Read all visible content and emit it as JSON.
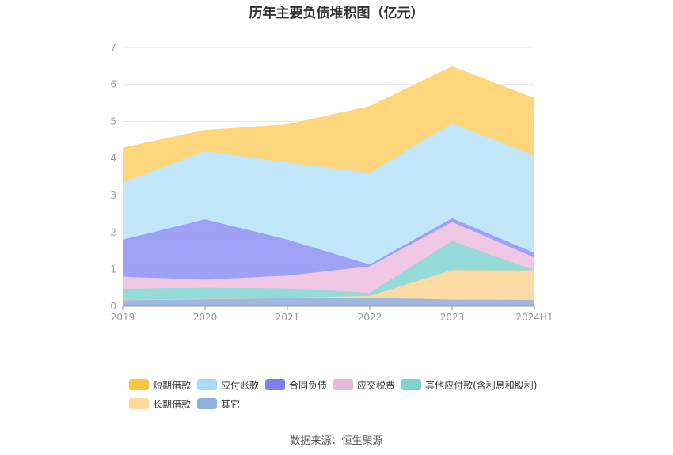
{
  "title": "历年主要负债堆积图（亿元）",
  "source": "数据来源：恒生聚源",
  "chart_data": {
    "type": "area",
    "stacked": true,
    "categories": [
      "2019",
      "2020",
      "2021",
      "2022",
      "2023",
      "2024H1"
    ],
    "ylim": [
      0,
      7
    ],
    "yticks": [
      0,
      1,
      2,
      3,
      4,
      5,
      6,
      7
    ],
    "grid": true,
    "legend_position": "bottom",
    "series": [
      {
        "name": "其它",
        "color": "#9ab4e0",
        "values": [
          0.17,
          0.2,
          0.23,
          0.23,
          0.18,
          0.17
        ]
      },
      {
        "name": "长期借款",
        "color": "#fdd9a0",
        "values": [
          0,
          0,
          0,
          0.05,
          0.8,
          0.8
        ]
      },
      {
        "name": "其他应付款(含利息和股利)",
        "color": "#8fd9d8",
        "values": [
          0.3,
          0.3,
          0.25,
          0.08,
          0.78,
          0
        ]
      },
      {
        "name": "应交税费",
        "color": "#efc5e3",
        "values": [
          0.33,
          0.22,
          0.35,
          0.72,
          0.52,
          0.35
        ]
      },
      {
        "name": "合同负债",
        "color": "#9a9cf5",
        "values": [
          1.0,
          1.63,
          0.97,
          0.05,
          0.1,
          0.12
        ]
      },
      {
        "name": "应付账款",
        "color": "#bfe6fb",
        "values": [
          1.55,
          1.85,
          2.09,
          2.48,
          2.57,
          2.63
        ]
      },
      {
        "name": "短期借款",
        "color": "#fed576",
        "values": [
          0.93,
          0.56,
          1.02,
          1.79,
          1.53,
          1.55
        ]
      }
    ],
    "legend": [
      [
        {
          "name": "短期借款",
          "color": "#fbc543"
        },
        {
          "name": "应付账款",
          "color": "#a6dcf9"
        },
        {
          "name": "合同负债",
          "color": "#7e80f0"
        },
        {
          "name": "应交税费",
          "color": "#e6b8dc"
        },
        {
          "name": "其他应付款(含利息和股利)",
          "color": "#7dd3d2"
        }
      ],
      [
        {
          "name": "长期借款",
          "color": "#fdd9a0"
        },
        {
          "name": "其它",
          "color": "#8fb0de"
        }
      ]
    ]
  }
}
